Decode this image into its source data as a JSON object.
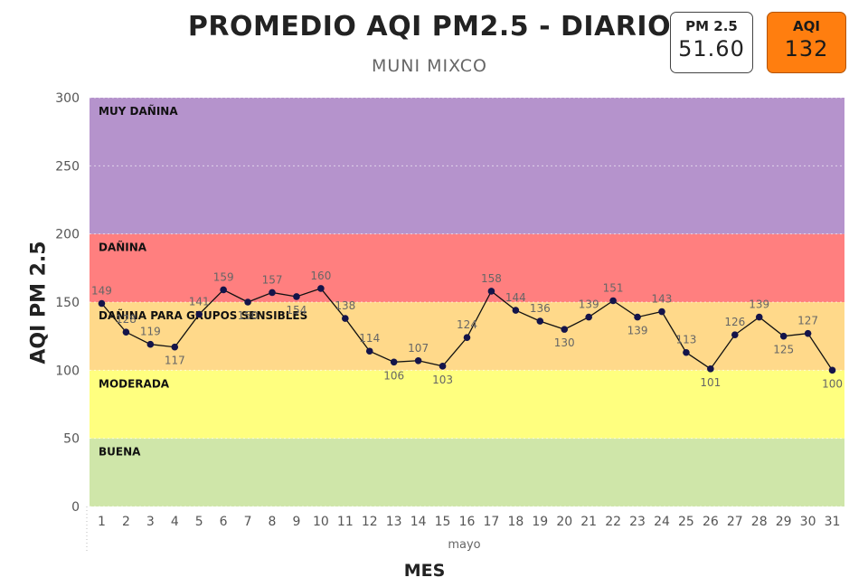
{
  "header": {
    "title": "PROMEDIO AQI PM2.5 - DIARIO",
    "subtitle": "MUNI MIXCO"
  },
  "cards": {
    "pm25": {
      "label": "PM 2.5",
      "value": "51.60",
      "color": "#ffffff"
    },
    "aqi": {
      "label": "AQI",
      "value": "132",
      "color": "#ff7e0f"
    }
  },
  "chart_data": {
    "type": "line",
    "title": "PROMEDIO AQI PM2.5 - DIARIO",
    "subtitle": "MUNI MIXCO",
    "xlabel": "MES",
    "x_sublabel": "mayo",
    "ylabel": "AQI PM 2.5",
    "ylim": [
      0,
      300
    ],
    "yticks": [
      0,
      50,
      100,
      150,
      200,
      250,
      300
    ],
    "x": [
      1,
      2,
      3,
      4,
      5,
      6,
      7,
      8,
      9,
      10,
      11,
      12,
      13,
      14,
      15,
      16,
      17,
      18,
      19,
      20,
      21,
      22,
      23,
      24,
      25,
      26,
      27,
      28,
      29,
      30,
      31
    ],
    "values": [
      149,
      128,
      119,
      117,
      141,
      159,
      150,
      157,
      154,
      160,
      138,
      114,
      106,
      107,
      103,
      124,
      158,
      144,
      136,
      130,
      139,
      151,
      139,
      143,
      113,
      101,
      126,
      139,
      125,
      127,
      100
    ],
    "data_labels": [
      "149",
      "128",
      "119",
      "117",
      "141",
      "159",
      "150",
      "157",
      "154",
      "160",
      "138",
      "114",
      "106",
      "107",
      "103",
      "124",
      "158",
      "144",
      "136",
      "130",
      "139",
      "151",
      "139",
      "143",
      "113",
      "101",
      "126",
      "139",
      "125",
      "127",
      "100"
    ],
    "line_color": "#111111",
    "marker_color": "#14144a",
    "grid": true,
    "bands": [
      {
        "label": "BUENA",
        "from": 0,
        "to": 50,
        "color": "#cfe6a9"
      },
      {
        "label": "MODERADA",
        "from": 50,
        "to": 100,
        "color": "#ffff7f"
      },
      {
        "label": "DAÑINA PARA GRUPOS SENSIBLES",
        "from": 100,
        "to": 150,
        "color": "#ffd98a"
      },
      {
        "label": "DAÑINA",
        "from": 150,
        "to": 200,
        "color": "#ff7f7f"
      },
      {
        "label": "MUY DAÑINA",
        "from": 200,
        "to": 300,
        "color": "#b593cc"
      }
    ]
  }
}
